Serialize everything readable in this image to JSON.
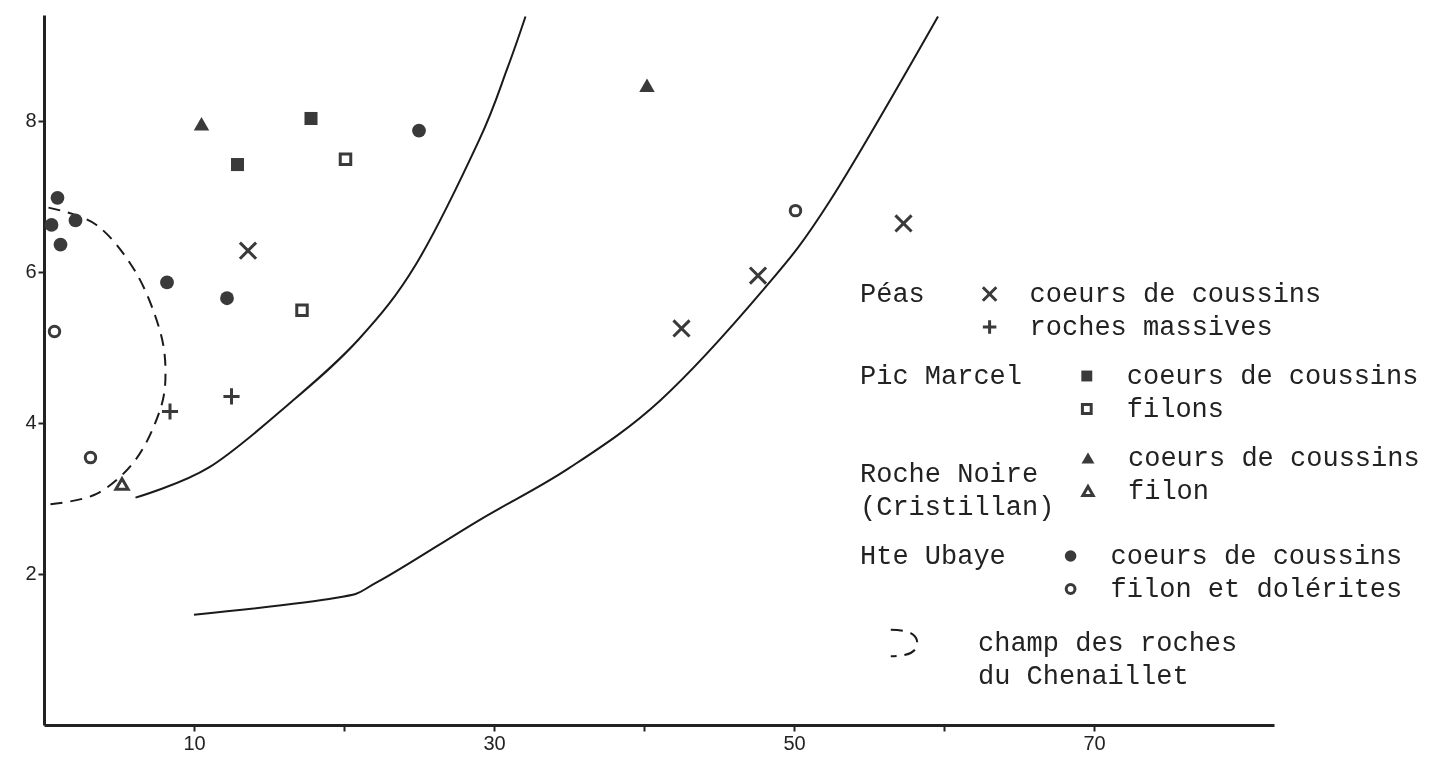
{
  "chart_data": {
    "type": "scatter",
    "xlim": [
      0,
      82
    ],
    "ylim": [
      0,
      9.4
    ],
    "xticks": [
      10,
      {
        "value": 20,
        "label": null
      },
      30,
      {
        "value": 40,
        "label": null
      },
      50,
      {
        "value": 60,
        "label": null
      },
      70
    ],
    "yticks": [
      2,
      4,
      6,
      8
    ],
    "grid": false,
    "legend": "right",
    "annotations": [
      "Péas",
      "Pic Marcel",
      "Roche Noire\n(Cristillan)",
      "Hte Ubaye"
    ],
    "series": [
      {
        "name": "coeurs de coussins",
        "marker": "cross",
        "color": "#3a3a3a",
        "x": [
          13.6,
          42.5,
          47.6,
          57.3
        ],
        "values": [
          6.28,
          5.25,
          5.95,
          6.64
        ]
      },
      {
        "name": "roches massives",
        "marker": "plus",
        "color": "#3a3a3a",
        "x": [
          8.4,
          12.5
        ],
        "values": [
          4.15,
          4.35
        ]
      },
      {
        "name": "coeurs de coussins",
        "marker": "square",
        "color": "#3a3a3a",
        "x": [
          17.8,
          12.9
        ],
        "values": [
          8.03,
          7.42
        ]
      },
      {
        "name": "filons",
        "marker": "square-open",
        "color": "#3a3a3a",
        "x": [
          20.1,
          17.2
        ],
        "values": [
          7.49,
          5.49
        ]
      },
      {
        "name": "coeurs de coussins",
        "marker": "triangle",
        "color": "#3a3a3a",
        "x": [
          10.5,
          40.2
        ],
        "values": [
          7.96,
          8.47
        ]
      },
      {
        "name": "filon",
        "marker": "triangle-open",
        "color": "#3a3a3a",
        "x": [
          5.2
        ],
        "values": [
          3.19
        ]
      },
      {
        "name": "coeurs de coussins",
        "marker": "circle",
        "color": "#3a3a3a",
        "x": [
          0.9,
          0.5,
          2.1,
          1.1,
          8.2,
          12.2,
          25.0
        ],
        "values": [
          6.98,
          6.62,
          6.68,
          6.36,
          5.86,
          5.65,
          7.87
        ]
      },
      {
        "name": "filon et dolérites",
        "marker": "circle-open",
        "color": "#3a3a3a",
        "x": [
          0.7,
          3.1,
          50.1
        ],
        "values": [
          5.21,
          3.54,
          6.81
        ]
      },
      {
        "type": "line",
        "line_style": "solid",
        "color": "#1a1a1a",
        "x": [
          6.1,
          11.0,
          16.5,
          21.0,
          24.8,
          29.0,
          30.9,
          32.1
        ],
        "values": [
          3.01,
          3.41,
          4.28,
          5.11,
          6.1,
          7.74,
          8.7,
          9.38
        ]
      },
      {
        "type": "line",
        "line_style": "solid",
        "color": "#1a1a1a",
        "x": [
          10.0,
          19.4,
          22.3,
          29.0,
          35.0,
          41.1,
          47.9,
          52.4,
          59.6
        ],
        "values": [
          1.46,
          1.68,
          1.9,
          2.71,
          3.4,
          4.3,
          5.75,
          6.94,
          9.38
        ]
      },
      {
        "name": "champ des roches\ndu Chenaillet",
        "type": "line",
        "line_style": "dashed",
        "color": "#1a1a1a",
        "x": [
          0.3,
          3.5,
          6.1,
          7.7,
          8.1,
          7.7,
          6.1,
          3.5,
          0.3
        ],
        "values": [
          6.85,
          6.62,
          6.0,
          5.24,
          4.66,
          4.15,
          3.51,
          3.06,
          2.92
        ]
      }
    ]
  }
}
